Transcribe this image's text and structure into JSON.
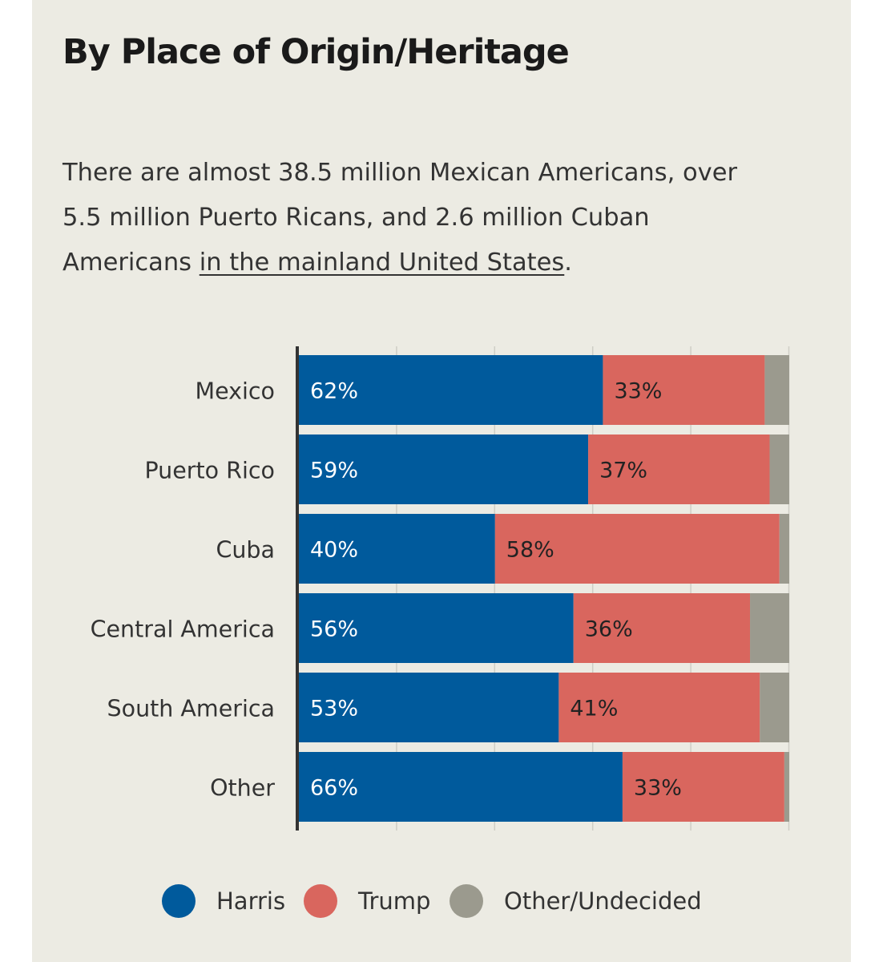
{
  "title": "By Place of Origin/Heritage",
  "description": {
    "text_before": "There are almost 38.5 million Mexican Americans, over 5.5 million Puerto Ricans, and 2.6 million Cuban Americans ",
    "link_text": "in the mainland United States",
    "text_after": "."
  },
  "colors": {
    "harris": "#005a9c",
    "trump": "#d9665e",
    "other": "#9b9a8e",
    "background": "#ecebe3"
  },
  "legend": {
    "harris": "Harris",
    "trump": "Trump",
    "other": "Other/Undecided"
  },
  "chart_data": {
    "type": "bar",
    "orientation": "horizontal",
    "stacked": true,
    "categories": [
      "Mexico",
      "Puerto Rico",
      "Cuba",
      "Central America",
      "South America",
      "Other"
    ],
    "series": [
      {
        "name": "Harris",
        "values": [
          62,
          59,
          40,
          56,
          53,
          66
        ],
        "labels": [
          "62%",
          "59%",
          "40%",
          "56%",
          "53%",
          "66%"
        ]
      },
      {
        "name": "Trump",
        "values": [
          33,
          37,
          58,
          36,
          41,
          33
        ],
        "labels": [
          "33%",
          "37%",
          "58%",
          "36%",
          "41%",
          "33%"
        ]
      },
      {
        "name": "Other/Undecided",
        "values": [
          5,
          4,
          2,
          8,
          6,
          1
        ]
      }
    ],
    "xlim": [
      0,
      100
    ],
    "grid": true,
    "legend_position": "bottom"
  }
}
